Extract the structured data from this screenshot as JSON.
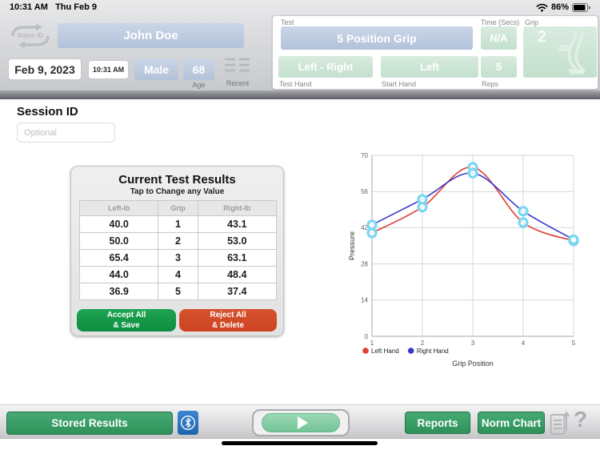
{
  "status_bar": {
    "time": "10:31 AM",
    "date": "Thu Feb 9",
    "battery": "86%"
  },
  "toolbar": {
    "name_id_label": "Name ID",
    "patient_name": "John Doe",
    "date": "Feb 9, 2023",
    "time": "10:31 AM",
    "gender": "Male",
    "age_value": "68",
    "age_label": "Age",
    "recent_label": "Recent"
  },
  "test_panel": {
    "test_label": "Test",
    "test_value": "5 Position Grip",
    "time_label": "Time (Secs)",
    "time_value": "N/A",
    "grip_label": "Grip",
    "grip_value": "2",
    "test_hand_value": "Left - Right",
    "test_hand_label": "Test Hand",
    "start_hand_value": "Left",
    "start_hand_label": "Start Hand",
    "reps_value": "5",
    "reps_label": "Reps"
  },
  "session": {
    "label": "Session ID",
    "placeholder": "Optional"
  },
  "results_card": {
    "title": "Current Test Results",
    "subtitle": "Tap to Change any Value",
    "columns": [
      "Left-lb",
      "Grip",
      "Right-lb"
    ],
    "rows": [
      [
        "40.0",
        "1",
        "43.1"
      ],
      [
        "50.0",
        "2",
        "53.0"
      ],
      [
        "65.4",
        "3",
        "63.1"
      ],
      [
        "44.0",
        "4",
        "48.4"
      ],
      [
        "36.9",
        "5",
        "37.4"
      ]
    ],
    "accept_line1": "Accept All",
    "accept_line2": "& Save",
    "reject_line1": "Reject All",
    "reject_line2": "& Delete"
  },
  "chart_data": {
    "type": "line",
    "x": [
      1,
      2,
      3,
      4,
      5
    ],
    "series": [
      {
        "name": "Left Hand",
        "color": "#df3f33",
        "values": [
          40.0,
          50.0,
          65.4,
          44.0,
          36.9
        ]
      },
      {
        "name": "Right Hand",
        "color": "#3838cc",
        "values": [
          43.1,
          53.0,
          63.1,
          48.4,
          37.4
        ]
      }
    ],
    "marker_color": "#79d7f3",
    "xlabel": "Grip Position",
    "ylabel": "Pressure",
    "ylim": [
      0,
      70
    ],
    "yticks": [
      0,
      14,
      28,
      42,
      56,
      70
    ],
    "grid": true,
    "legend_position": "bottom-left"
  },
  "bottom_bar": {
    "stored_results": "Stored Results",
    "reports": "Reports",
    "norm_chart": "Norm Chart",
    "help": "?"
  },
  "colors": {
    "accent_green": "#2d9158",
    "accept_green": "#13984a",
    "reject_red": "#d04a28",
    "bluetooth_blue": "#2a74bf",
    "field_blue": "#b9c8dd",
    "field_green": "#cde4d5"
  }
}
